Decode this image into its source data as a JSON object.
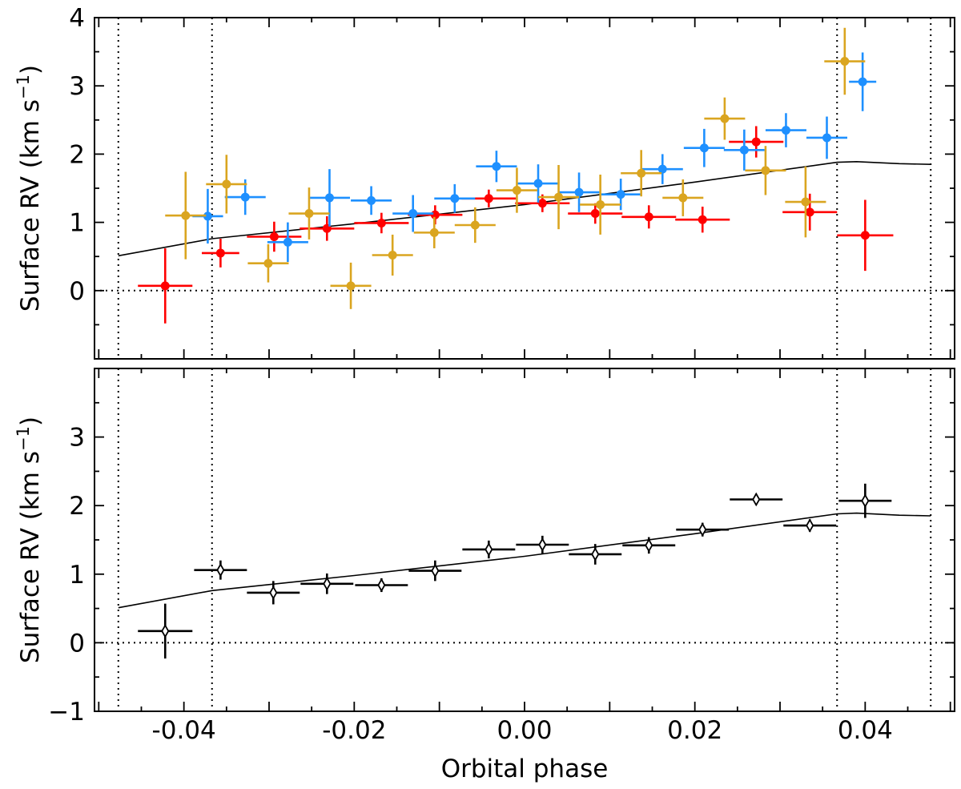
{
  "chart_data": [
    {
      "type": "scatter",
      "panel": "top",
      "xlabel": "",
      "ylabel_main": "Surface RV (km s",
      "ylabel_sup": "−1",
      "ylabel_close": ")",
      "xlim": [
        -0.0505,
        0.0505
      ],
      "ylim": [
        -1.0,
        4.0
      ],
      "yticks": [
        {
          "value": 0,
          "label": "0"
        },
        {
          "value": 1,
          "label": "1"
        },
        {
          "value": 2,
          "label": "2"
        },
        {
          "value": 3,
          "label": "3"
        },
        {
          "value": 4,
          "label": "4"
        }
      ],
      "vlines": [
        -0.0477,
        -0.0367,
        0.0367,
        0.0477
      ],
      "hline": 0,
      "model_line": {
        "x": [
          -0.0477,
          -0.0367,
          -0.02,
          0.0,
          0.02,
          0.0367,
          0.039,
          0.044,
          0.0477
        ],
        "y": [
          0.51,
          0.76,
          0.98,
          1.26,
          1.59,
          1.88,
          1.89,
          1.86,
          1.85
        ]
      },
      "series": [
        {
          "name": "red",
          "color": "#ff0000",
          "points": [
            {
              "x": -0.0422,
              "y": 0.07,
              "xerr": 0.0032,
              "yerr": 0.55
            },
            {
              "x": -0.0357,
              "y": 0.55,
              "xerr": 0.0022,
              "yerr": 0.21
            },
            {
              "x": -0.0294,
              "y": 0.79,
              "xerr": 0.0032,
              "yerr": 0.22
            },
            {
              "x": -0.0232,
              "y": 0.91,
              "xerr": 0.0032,
              "yerr": 0.18
            },
            {
              "x": -0.0168,
              "y": 0.99,
              "xerr": 0.0032,
              "yerr": 0.15
            },
            {
              "x": -0.0105,
              "y": 1.11,
              "xerr": 0.0032,
              "yerr": 0.14
            },
            {
              "x": -0.0042,
              "y": 1.35,
              "xerr": 0.0032,
              "yerr": 0.13
            },
            {
              "x": 0.0021,
              "y": 1.28,
              "xerr": 0.0032,
              "yerr": 0.13
            },
            {
              "x": 0.0083,
              "y": 1.13,
              "xerr": 0.0032,
              "yerr": 0.15
            },
            {
              "x": 0.0146,
              "y": 1.08,
              "xerr": 0.0032,
              "yerr": 0.17
            },
            {
              "x": 0.0209,
              "y": 1.04,
              "xerr": 0.0032,
              "yerr": 0.19
            },
            {
              "x": 0.0272,
              "y": 2.18,
              "xerr": 0.0032,
              "yerr": 0.23
            },
            {
              "x": 0.0335,
              "y": 1.15,
              "xerr": 0.0032,
              "yerr": 0.27
            },
            {
              "x": 0.04,
              "y": 0.81,
              "xerr": 0.0033,
              "yerr": 0.52
            }
          ]
        },
        {
          "name": "blue",
          "color": "#1e90ff",
          "points": [
            {
              "x": -0.0372,
              "y": 1.09,
              "xerr": 0.0018,
              "yerr": 0.4
            },
            {
              "x": -0.0328,
              "y": 1.37,
              "xerr": 0.0024,
              "yerr": 0.26
            },
            {
              "x": -0.0278,
              "y": 0.71,
              "xerr": 0.0024,
              "yerr": 0.29
            },
            {
              "x": -0.0229,
              "y": 1.36,
              "xerr": 0.0024,
              "yerr": 0.42
            },
            {
              "x": -0.018,
              "y": 1.32,
              "xerr": 0.0024,
              "yerr": 0.21
            },
            {
              "x": -0.0131,
              "y": 1.13,
              "xerr": 0.0024,
              "yerr": 0.27
            },
            {
              "x": -0.0082,
              "y": 1.35,
              "xerr": 0.0024,
              "yerr": 0.21
            },
            {
              "x": -0.0033,
              "y": 1.82,
              "xerr": 0.0024,
              "yerr": 0.23
            },
            {
              "x": 0.0016,
              "y": 1.57,
              "xerr": 0.0024,
              "yerr": 0.28
            },
            {
              "x": 0.0064,
              "y": 1.44,
              "xerr": 0.0024,
              "yerr": 0.29
            },
            {
              "x": 0.0113,
              "y": 1.41,
              "xerr": 0.0024,
              "yerr": 0.23
            },
            {
              "x": 0.0162,
              "y": 1.78,
              "xerr": 0.0024,
              "yerr": 0.22
            },
            {
              "x": 0.0211,
              "y": 2.09,
              "xerr": 0.0024,
              "yerr": 0.28
            },
            {
              "x": 0.0258,
              "y": 2.06,
              "xerr": 0.0024,
              "yerr": 0.3
            },
            {
              "x": 0.0307,
              "y": 2.35,
              "xerr": 0.0024,
              "yerr": 0.25
            },
            {
              "x": 0.0355,
              "y": 2.24,
              "xerr": 0.0024,
              "yerr": 0.31
            },
            {
              "x": 0.0397,
              "y": 3.06,
              "xerr": 0.0016,
              "yerr": 0.43
            }
          ]
        },
        {
          "name": "gold",
          "color": "#daa520",
          "points": [
            {
              "x": -0.0398,
              "y": 1.1,
              "xerr": 0.0024,
              "yerr": 0.64
            },
            {
              "x": -0.035,
              "y": 1.56,
              "xerr": 0.0024,
              "yerr": 0.43
            },
            {
              "x": -0.0301,
              "y": 0.4,
              "xerr": 0.0024,
              "yerr": 0.28
            },
            {
              "x": -0.0253,
              "y": 1.13,
              "xerr": 0.0024,
              "yerr": 0.38
            },
            {
              "x": -0.0204,
              "y": 0.07,
              "xerr": 0.0024,
              "yerr": 0.34
            },
            {
              "x": -0.0155,
              "y": 0.52,
              "xerr": 0.0024,
              "yerr": 0.3
            },
            {
              "x": -0.0106,
              "y": 0.85,
              "xerr": 0.0024,
              "yerr": 0.23
            },
            {
              "x": -0.0058,
              "y": 0.96,
              "xerr": 0.0024,
              "yerr": 0.26
            },
            {
              "x": -0.0009,
              "y": 1.47,
              "xerr": 0.0024,
              "yerr": 0.33
            },
            {
              "x": 0.004,
              "y": 1.37,
              "xerr": 0.0024,
              "yerr": 0.47
            },
            {
              "x": 0.0089,
              "y": 1.26,
              "xerr": 0.0024,
              "yerr": 0.44
            },
            {
              "x": 0.0137,
              "y": 1.72,
              "xerr": 0.0024,
              "yerr": 0.34
            },
            {
              "x": 0.0186,
              "y": 1.36,
              "xerr": 0.0024,
              "yerr": 0.27
            },
            {
              "x": 0.0235,
              "y": 2.52,
              "xerr": 0.0024,
              "yerr": 0.31
            },
            {
              "x": 0.0283,
              "y": 1.76,
              "xerr": 0.0024,
              "yerr": 0.36
            },
            {
              "x": 0.033,
              "y": 1.3,
              "xerr": 0.0024,
              "yerr": 0.52
            },
            {
              "x": 0.0376,
              "y": 3.36,
              "xerr": 0.0024,
              "yerr": 0.49
            }
          ]
        }
      ]
    },
    {
      "type": "scatter",
      "panel": "bottom",
      "xlabel": "Orbital phase",
      "ylabel_main": "Surface RV (km s",
      "ylabel_sup": "−1",
      "ylabel_close": ")",
      "xlim": [
        -0.0505,
        0.0505
      ],
      "ylim": [
        -1.0,
        4.0
      ],
      "xticks": [
        {
          "value": -0.04,
          "label": "-0.04"
        },
        {
          "value": -0.02,
          "label": "-0.02"
        },
        {
          "value": 0.0,
          "label": "0.00"
        },
        {
          "value": 0.02,
          "label": "0.02"
        },
        {
          "value": 0.04,
          "label": "0.04"
        }
      ],
      "yticks": [
        {
          "value": -1,
          "label": "−1"
        },
        {
          "value": 0,
          "label": "0"
        },
        {
          "value": 1,
          "label": "1"
        },
        {
          "value": 2,
          "label": "2"
        },
        {
          "value": 3,
          "label": "3"
        }
      ],
      "vlines": [
        -0.0477,
        -0.0367,
        0.0367,
        0.0477
      ],
      "hline": 0,
      "model_line": {
        "x": [
          -0.0477,
          -0.0367,
          -0.02,
          0.0,
          0.02,
          0.0367,
          0.039,
          0.044,
          0.0477
        ],
        "y": [
          0.51,
          0.76,
          0.98,
          1.26,
          1.59,
          1.88,
          1.89,
          1.86,
          1.85
        ]
      },
      "series": [
        {
          "name": "binned",
          "color": "#000000",
          "marker": "diamond",
          "points": [
            {
              "x": -0.0422,
              "y": 0.17,
              "xerr": 0.0032,
              "yerr": 0.4
            },
            {
              "x": -0.0357,
              "y": 1.06,
              "xerr": 0.0031,
              "yerr": 0.14
            },
            {
              "x": -0.0295,
              "y": 0.73,
              "xerr": 0.0031,
              "yerr": 0.17
            },
            {
              "x": -0.0232,
              "y": 0.86,
              "xerr": 0.0031,
              "yerr": 0.15
            },
            {
              "x": -0.0168,
              "y": 0.84,
              "xerr": 0.0031,
              "yerr": 0.1
            },
            {
              "x": -0.0105,
              "y": 1.05,
              "xerr": 0.0031,
              "yerr": 0.15
            },
            {
              "x": -0.0042,
              "y": 1.36,
              "xerr": 0.0031,
              "yerr": 0.13
            },
            {
              "x": 0.0021,
              "y": 1.43,
              "xerr": 0.0031,
              "yerr": 0.13
            },
            {
              "x": 0.0083,
              "y": 1.29,
              "xerr": 0.0031,
              "yerr": 0.15
            },
            {
              "x": 0.0146,
              "y": 1.42,
              "xerr": 0.0031,
              "yerr": 0.12
            },
            {
              "x": 0.0209,
              "y": 1.65,
              "xerr": 0.0031,
              "yerr": 0.1
            },
            {
              "x": 0.0272,
              "y": 2.09,
              "xerr": 0.0031,
              "yerr": 0.08
            },
            {
              "x": 0.0335,
              "y": 1.71,
              "xerr": 0.0031,
              "yerr": 0.09
            },
            {
              "x": 0.04,
              "y": 2.07,
              "xerr": 0.0031,
              "yerr": 0.25
            }
          ]
        }
      ]
    }
  ]
}
